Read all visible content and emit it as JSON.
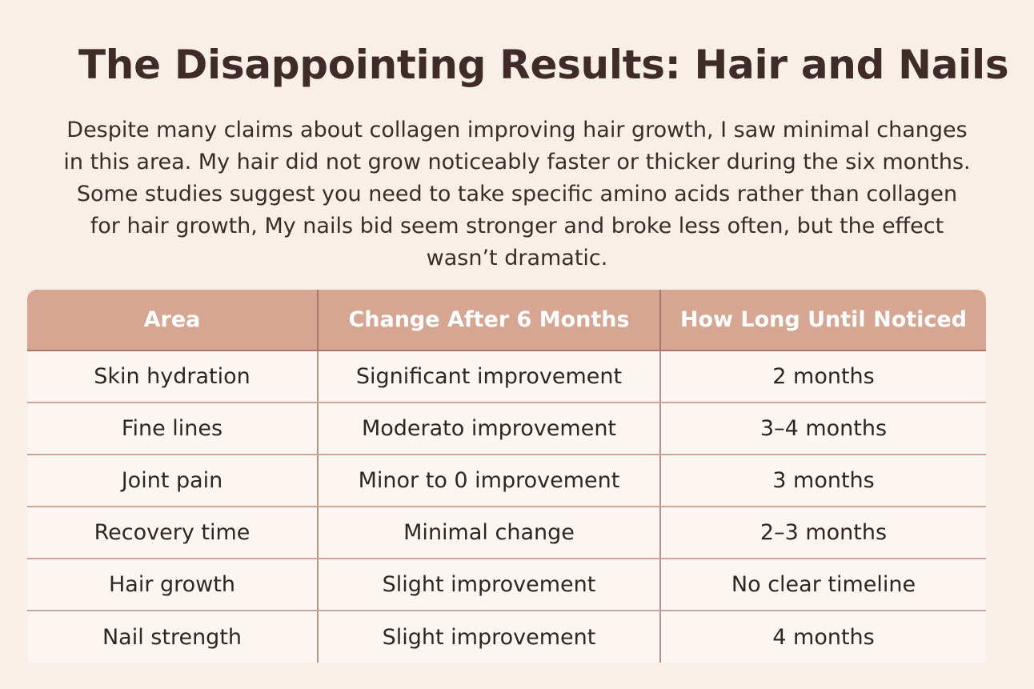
{
  "title": "The Disappointing Results: Hair and Nails",
  "intro_lines": [
    "Despite many claims about collagen improving hair growth, I saw minimal changes",
    "in this area. My hair did not grow noticeably faster or thicker during the six months.",
    "Some studies suggest you need to take specific amino acids rather than collagen",
    "for hair growth, My nails bid seem stronger and broke less often, but the effect",
    "wasn’t dramatic."
  ],
  "table": {
    "headers": [
      "Area",
      "Change After 6 Months",
      "How Long Until Noticed"
    ],
    "rows": [
      [
        "Skin hydration",
        "Significant improvement",
        "2 months"
      ],
      [
        "Fine lines",
        "Moderato improvement",
        "3–4 months"
      ],
      [
        "Joint pain",
        "Minor to 0 improvement",
        "3 months"
      ],
      [
        "Recovery time",
        "Minimal change",
        "2–3 months"
      ],
      [
        "Hair growth",
        "Slight improvement",
        "No clear timeline"
      ],
      [
        "Nail strength",
        "Slight improvement",
        "4 months"
      ]
    ]
  },
  "colors": {
    "background": "#f8efe6",
    "header_fill": "#d6a692",
    "row_fill": "#fbf6f2",
    "title_text": "#3f2c2a"
  }
}
